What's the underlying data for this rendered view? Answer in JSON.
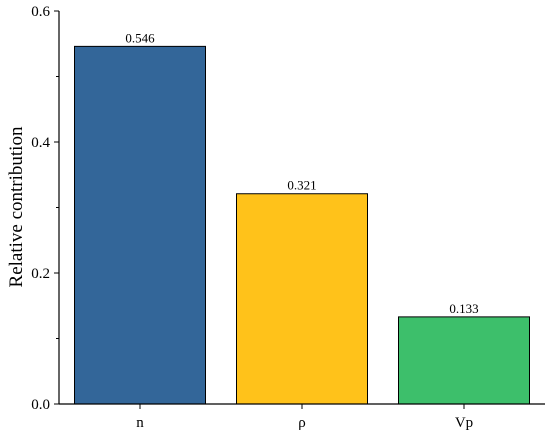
{
  "chart_data": {
    "type": "bar",
    "title": "",
    "xlabel": "",
    "ylabel": "Relative contribution",
    "categories": [
      "n",
      "ρ",
      "Vp"
    ],
    "values": [
      0.546,
      0.321,
      0.133
    ],
    "value_labels": [
      "0.546",
      "0.321",
      "0.133"
    ],
    "ylim": [
      0,
      0.6
    ],
    "yticks": [
      0.0,
      0.2,
      0.4,
      0.6
    ],
    "ytick_labels": [
      "0.0",
      "0.2",
      "0.4",
      "0.6"
    ],
    "grid": false,
    "legend": "none",
    "bar_colors": [
      "#336699",
      "#FFC21A",
      "#3DBF6B"
    ]
  }
}
